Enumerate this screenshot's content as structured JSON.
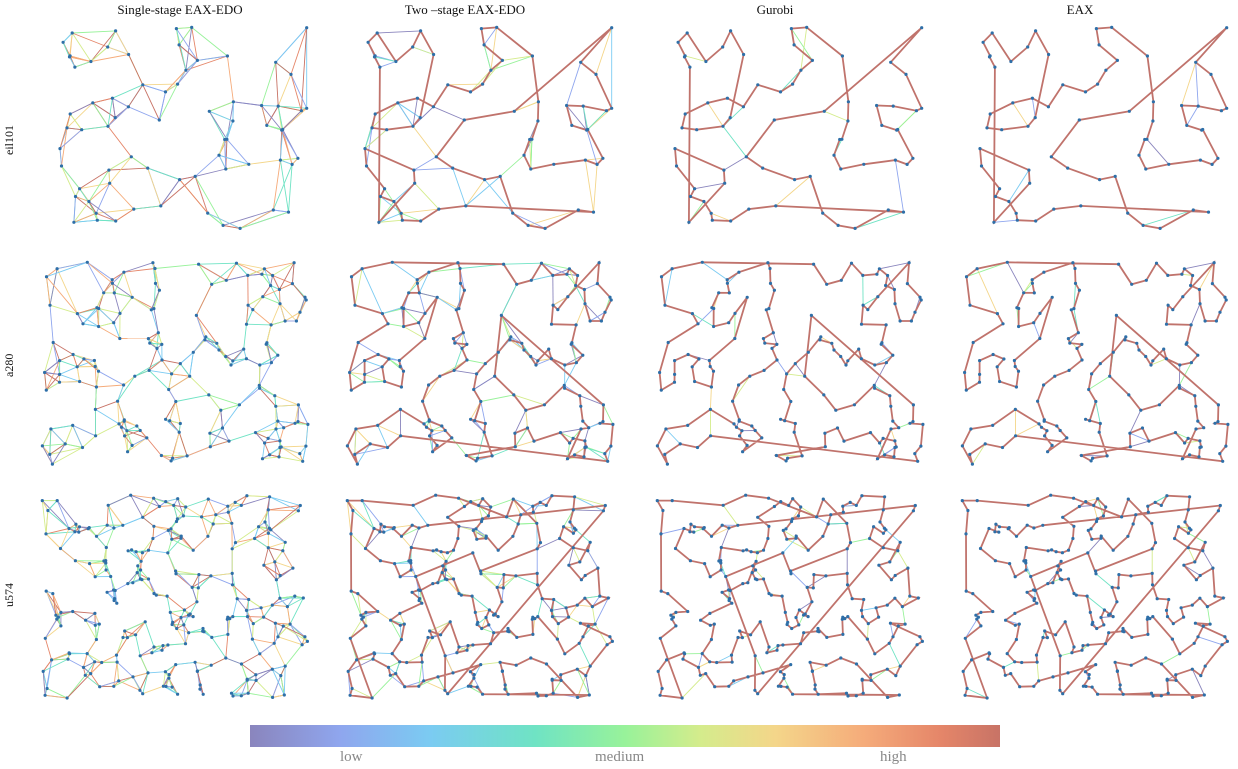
{
  "columns": [
    "Single-stage EAX-EDO",
    "Two –stage EAX-EDO",
    "Gurobi",
    "EAX"
  ],
  "rows": [
    "eil101",
    "a280",
    "u574"
  ],
  "colorbar": {
    "labels": [
      "low",
      "medium",
      "high"
    ],
    "colors": [
      "#8a85bd",
      "#8fa6ee",
      "#7bcbf2",
      "#6fe3c4",
      "#98f29a",
      "#d4ec8c",
      "#f4d68a",
      "#f5ab7a",
      "#e58669",
      "#c87366"
    ]
  },
  "tour_color": "#c0736c",
  "node_color": "#2e6fa8"
}
